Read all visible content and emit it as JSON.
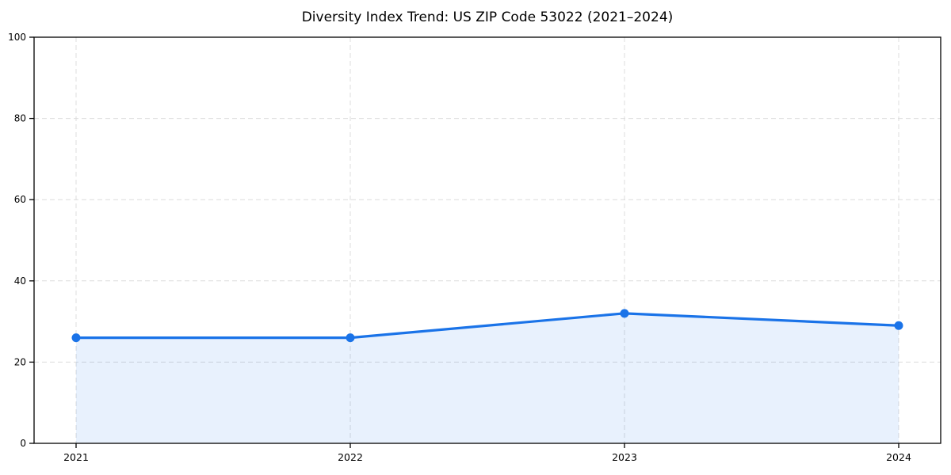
{
  "chart_data": {
    "type": "area",
    "title": "Diversity Index Trend: US ZIP Code 53022 (2021–2024)",
    "x": [
      2021,
      2022,
      2023,
      2024
    ],
    "categories": [
      "2021",
      "2022",
      "2023",
      "2024"
    ],
    "series": [
      {
        "name": "Diversity Index",
        "values": [
          26,
          26,
          32,
          29
        ]
      }
    ],
    "xlabel": "",
    "ylabel": "",
    "ylim": [
      0,
      100
    ],
    "yticks": [
      0,
      20,
      40,
      60,
      80,
      100
    ],
    "grid": "dashed",
    "legend": false,
    "colors": {
      "line": "#1a73e8",
      "marker": "#1a73e8",
      "fill": "#1a73e8",
      "fill_opacity": 0.1,
      "grid": "#dcdcdc",
      "spine": "#000000",
      "tick_label": "#000000"
    }
  }
}
